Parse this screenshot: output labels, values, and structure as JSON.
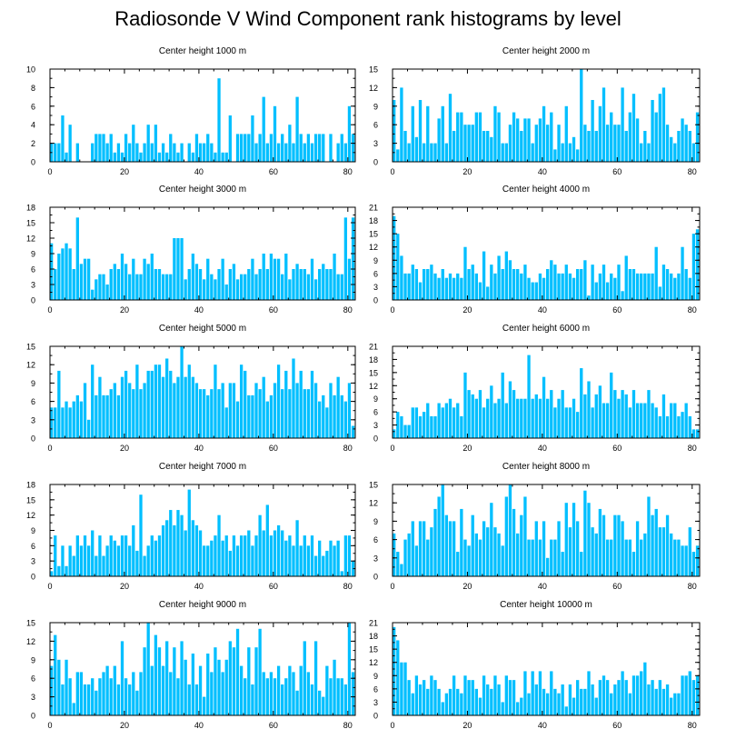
{
  "title": "Radiosonde V Wind Component rank histograms by level",
  "colors": {
    "bar": "#00bfff",
    "bar_edge": "#e8f8ff",
    "axis": "#000000"
  },
  "chart_data": [
    {
      "type": "bar",
      "title": "Center height 1000 m",
      "xlim": [
        0,
        82
      ],
      "ylim": [
        0,
        10
      ],
      "yticks": [
        0,
        2,
        4,
        6,
        8,
        10
      ],
      "xticks": [
        0,
        20,
        40,
        60,
        80
      ],
      "values": [
        2,
        2,
        2,
        5,
        1,
        4,
        0,
        2,
        0,
        0,
        0,
        2,
        3,
        3,
        3,
        2,
        3,
        1,
        2,
        1,
        3,
        2,
        4,
        2,
        1,
        2,
        4,
        2,
        4,
        1,
        2,
        1,
        3,
        2,
        1,
        2,
        0,
        2,
        1,
        3,
        2,
        2,
        3,
        2,
        1,
        9,
        1,
        1,
        5,
        0,
        3,
        3,
        3,
        3,
        5,
        2,
        3,
        7,
        2,
        3,
        6,
        2,
        3,
        2,
        4,
        2,
        7,
        3,
        2,
        3,
        2,
        3,
        3,
        3,
        0,
        3,
        0,
        2,
        3,
        2,
        6,
        3
      ]
    },
    {
      "type": "bar",
      "title": "Center height 2000 m",
      "xlim": [
        0,
        82
      ],
      "ylim": [
        0,
        15
      ],
      "yticks": [
        0,
        3,
        6,
        9,
        12,
        15
      ],
      "xticks": [
        0,
        20,
        40,
        60,
        80
      ],
      "values": [
        10,
        2,
        12,
        5,
        3,
        9,
        4,
        10,
        3,
        9,
        3,
        3,
        7,
        9,
        3,
        11,
        5,
        8,
        8,
        6,
        6,
        6,
        8,
        8,
        5,
        5,
        4,
        9,
        8,
        3,
        3,
        6,
        8,
        7,
        5,
        7,
        7,
        3,
        6,
        7,
        9,
        6,
        8,
        2,
        6,
        3,
        9,
        3,
        4,
        2,
        15,
        6,
        5,
        10,
        5,
        9,
        12,
        6,
        8,
        6,
        6,
        12,
        5,
        8,
        11,
        7,
        3,
        5,
        3,
        10,
        8,
        11,
        12,
        6,
        4,
        3,
        5,
        7,
        6,
        5,
        3,
        8
      ]
    },
    {
      "type": "bar",
      "title": "Center height 3000 m",
      "xlim": [
        0,
        82
      ],
      "ylim": [
        0,
        18
      ],
      "yticks": [
        0,
        3,
        6,
        9,
        12,
        15,
        18
      ],
      "xticks": [
        0,
        20,
        40,
        60,
        80
      ],
      "values": [
        11,
        6,
        9,
        10,
        11,
        10,
        6,
        16,
        7,
        8,
        8,
        2,
        4,
        5,
        5,
        3,
        6,
        7,
        6,
        9,
        7,
        5,
        8,
        5,
        5,
        8,
        7,
        9,
        6,
        6,
        5,
        5,
        5,
        12,
        12,
        12,
        4,
        6,
        9,
        7,
        6,
        4,
        8,
        5,
        4,
        6,
        8,
        3,
        6,
        7,
        4,
        5,
        5,
        6,
        8,
        5,
        6,
        9,
        6,
        9,
        8,
        8,
        5,
        9,
        4,
        6,
        7,
        6,
        6,
        5,
        8,
        4,
        6,
        7,
        6,
        6,
        9,
        5,
        5,
        16,
        8,
        16
      ]
    },
    {
      "type": "bar",
      "title": "Center height 4000 m",
      "xlim": [
        0,
        82
      ],
      "ylim": [
        0,
        21
      ],
      "yticks": [
        0,
        3,
        6,
        9,
        12,
        15,
        18,
        21
      ],
      "xticks": [
        0,
        20,
        40,
        60,
        80
      ],
      "values": [
        19,
        15,
        10,
        6,
        6,
        8,
        7,
        4,
        7,
        7,
        8,
        6,
        5,
        7,
        5,
        6,
        5,
        6,
        5,
        12,
        7,
        8,
        6,
        4,
        11,
        3,
        8,
        6,
        10,
        7,
        11,
        9,
        7,
        7,
        6,
        8,
        5,
        4,
        4,
        6,
        5,
        7,
        9,
        8,
        6,
        6,
        8,
        6,
        5,
        7,
        7,
        9,
        1,
        8,
        4,
        6,
        8,
        4,
        6,
        5,
        8,
        2,
        10,
        7,
        7,
        6,
        6,
        6,
        6,
        6,
        12,
        3,
        8,
        7,
        6,
        5,
        6,
        12,
        7,
        5,
        15,
        16
      ]
    },
    {
      "type": "bar",
      "title": "Center height 5000 m",
      "xlim": [
        0,
        82
      ],
      "ylim": [
        0,
        15
      ],
      "yticks": [
        0,
        3,
        6,
        9,
        12,
        15
      ],
      "xticks": [
        0,
        20,
        40,
        60,
        80
      ],
      "values": [
        5,
        5,
        11,
        5,
        6,
        5,
        6,
        7,
        6,
        9,
        3,
        12,
        7,
        10,
        7,
        7,
        8,
        9,
        7,
        10,
        11,
        9,
        8,
        12,
        8,
        9,
        11,
        11,
        12,
        12,
        10,
        13,
        11,
        9,
        10,
        15,
        10,
        12,
        10,
        9,
        8,
        8,
        7,
        8,
        12,
        8,
        9,
        5,
        9,
        9,
        6,
        12,
        11,
        7,
        7,
        9,
        8,
        10,
        6,
        7,
        9,
        12,
        8,
        11,
        8,
        13,
        9,
        11,
        8,
        8,
        11,
        9,
        6,
        7,
        5,
        9,
        7,
        10,
        7,
        6,
        9,
        2
      ]
    },
    {
      "type": "bar",
      "title": "Center height 6000 m",
      "xlim": [
        0,
        82
      ],
      "ylim": [
        0,
        21
      ],
      "yticks": [
        0,
        3,
        6,
        9,
        12,
        15,
        18,
        21
      ],
      "xticks": [
        0,
        20,
        40,
        60,
        80
      ],
      "values": [
        2,
        6,
        5,
        3,
        3,
        7,
        7,
        5,
        6,
        8,
        5,
        5,
        8,
        7,
        8,
        9,
        7,
        8,
        5,
        15,
        11,
        10,
        9,
        11,
        7,
        9,
        12,
        8,
        9,
        15,
        8,
        13,
        11,
        9,
        9,
        9,
        19,
        9,
        10,
        9,
        14,
        9,
        11,
        7,
        9,
        11,
        7,
        7,
        9,
        6,
        16,
        10,
        13,
        7,
        10,
        12,
        8,
        8,
        15,
        11,
        9,
        11,
        10,
        7,
        11,
        8,
        8,
        8,
        11,
        8,
        7,
        5,
        10,
        5,
        8,
        8,
        5,
        6,
        8,
        5,
        2,
        2
      ]
    },
    {
      "type": "bar",
      "title": "Center height 7000 m",
      "xlim": [
        0,
        82
      ],
      "ylim": [
        0,
        18
      ],
      "yticks": [
        0,
        3,
        6,
        9,
        12,
        15,
        18
      ],
      "xticks": [
        0,
        20,
        40,
        60,
        80
      ],
      "values": [
        1,
        8,
        2,
        6,
        2,
        6,
        4,
        8,
        6,
        8,
        6,
        9,
        4,
        8,
        4,
        6,
        8,
        7,
        6,
        8,
        8,
        6,
        10,
        5,
        16,
        4,
        6,
        8,
        7,
        8,
        10,
        11,
        13,
        10,
        13,
        12,
        9,
        17,
        11,
        10,
        9,
        6,
        6,
        7,
        8,
        12,
        7,
        8,
        5,
        8,
        6,
        8,
        8,
        9,
        6,
        8,
        12,
        9,
        14,
        8,
        9,
        10,
        9,
        7,
        8,
        6,
        11,
        6,
        8,
        6,
        8,
        4,
        7,
        4,
        5,
        7,
        6,
        7,
        1,
        8,
        8,
        3
      ]
    },
    {
      "type": "bar",
      "title": "Center height 8000 m",
      "xlim": [
        0,
        82
      ],
      "ylim": [
        0,
        15
      ],
      "yticks": [
        0,
        3,
        6,
        9,
        12,
        15
      ],
      "xticks": [
        0,
        20,
        40,
        60,
        80
      ],
      "values": [
        7,
        4,
        2,
        6,
        7,
        9,
        5,
        9,
        9,
        6,
        8,
        11,
        13,
        15,
        10,
        9,
        9,
        4,
        11,
        6,
        5,
        10,
        7,
        6,
        9,
        8,
        12,
        8,
        7,
        5,
        13,
        15,
        11,
        7,
        10,
        13,
        6,
        6,
        9,
        6,
        9,
        3,
        6,
        6,
        9,
        4,
        12,
        8,
        12,
        9,
        4,
        14,
        12,
        8,
        7,
        11,
        10,
        6,
        6,
        10,
        10,
        9,
        6,
        6,
        4,
        9,
        6,
        7,
        13,
        10,
        11,
        8,
        8,
        10,
        7,
        6,
        6,
        5,
        5,
        8,
        4,
        5
      ]
    },
    {
      "type": "bar",
      "title": "Center height 9000 m",
      "xlim": [
        0,
        82
      ],
      "ylim": [
        0,
        15
      ],
      "yticks": [
        0,
        3,
        6,
        9,
        12,
        15
      ],
      "xticks": [
        0,
        20,
        40,
        60,
        80
      ],
      "values": [
        8,
        13,
        9,
        5,
        9,
        6,
        2,
        7,
        7,
        5,
        5,
        6,
        4,
        6,
        7,
        8,
        6,
        8,
        5,
        12,
        6,
        5,
        7,
        4,
        7,
        11,
        15,
        8,
        13,
        11,
        8,
        12,
        7,
        11,
        6,
        12,
        9,
        5,
        10,
        5,
        8,
        3,
        10,
        7,
        11,
        9,
        7,
        9,
        12,
        11,
        14,
        8,
        6,
        11,
        5,
        11,
        14,
        7,
        6,
        7,
        6,
        8,
        5,
        6,
        8,
        7,
        4,
        8,
        12,
        7,
        5,
        12,
        4,
        3,
        8,
        6,
        9,
        6,
        6,
        5,
        15,
        7
      ]
    },
    {
      "type": "bar",
      "title": "Center height 10000 m",
      "xlim": [
        0,
        82
      ],
      "ylim": [
        0,
        21
      ],
      "yticks": [
        0,
        3,
        6,
        9,
        12,
        15,
        18,
        21
      ],
      "xticks": [
        0,
        20,
        40,
        60,
        80
      ],
      "values": [
        20,
        17,
        12,
        12,
        8,
        5,
        9,
        7,
        8,
        6,
        9,
        8,
        6,
        3,
        5,
        6,
        9,
        6,
        5,
        9,
        8,
        8,
        6,
        4,
        9,
        7,
        6,
        9,
        7,
        3,
        9,
        8,
        8,
        3,
        4,
        10,
        5,
        10,
        7,
        10,
        6,
        5,
        10,
        6,
        5,
        7,
        2,
        7,
        4,
        8,
        6,
        6,
        10,
        7,
        4,
        8,
        9,
        8,
        5,
        7,
        8,
        10,
        8,
        5,
        9,
        9,
        10,
        12,
        7,
        8,
        6,
        8,
        6,
        7,
        4,
        5,
        5,
        9,
        9,
        10,
        8,
        9
      ]
    }
  ]
}
